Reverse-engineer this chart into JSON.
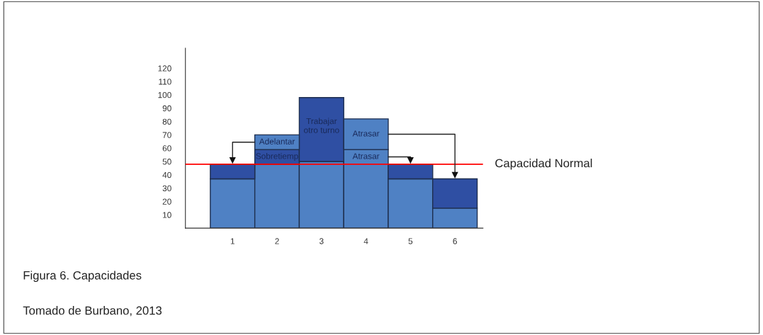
{
  "chart_data": {
    "type": "bar",
    "stacked": true,
    "categories": [
      "1",
      "2",
      "3",
      "4",
      "5",
      "6"
    ],
    "series": [
      {
        "color": "#4f81c4",
        "values": [
          37,
          48,
          50,
          59,
          37,
          15
        ]
      },
      {
        "color": "#2f4fa3",
        "colors": [
          "#2f4fa3",
          "#2f4fa3",
          "#2f4fa3",
          "#4f81c4",
          "#2f4fa3",
          "#2f4fa3"
        ],
        "values": [
          11,
          11,
          48,
          23,
          11,
          22
        ]
      },
      {
        "color": "#4f81c4",
        "values": [
          null,
          11,
          null,
          null,
          null,
          null
        ]
      }
    ],
    "ylim": [
      0,
      135
    ],
    "yticks": [
      10,
      20,
      30,
      40,
      50,
      60,
      70,
      80,
      90,
      100,
      110,
      120
    ],
    "grid": false,
    "legend": false,
    "ref_lines": [
      {
        "axis": "y",
        "value": 48,
        "label": "Capacidad Normal",
        "color": "#ff0000"
      }
    ],
    "annotations": [
      {
        "text": "Adelantar",
        "x": "1",
        "y": 48
      },
      "Sobretiemp",
      "Trabajar\notro turno",
      {
        "text": "Atrasar",
        "x": "6",
        "y": 37
      },
      {
        "text": "Atrasar",
        "x": "5",
        "y": 48
      },
      "Figura 6. Capacidades",
      "Tomado de Burbano, 2013"
    ]
  }
}
